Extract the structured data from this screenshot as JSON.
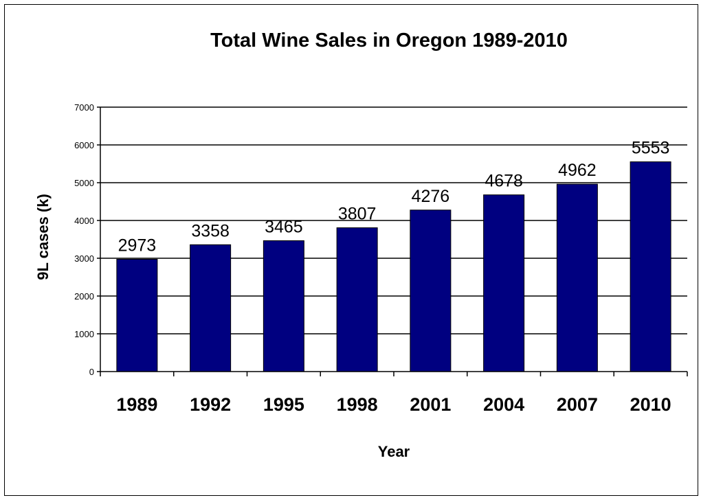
{
  "chart_data": {
    "type": "bar",
    "title": "Total Wine Sales in Oregon 1989-2010",
    "xlabel": "Year",
    "ylabel": "9L cases  (k)",
    "categories": [
      "1989",
      "1992",
      "1995",
      "1998",
      "2001",
      "2004",
      "2007",
      "2010"
    ],
    "values": [
      2973,
      3358,
      3465,
      3807,
      4276,
      4678,
      4962,
      5553
    ],
    "data_labels": [
      "2973",
      "3358",
      "3465",
      "3807",
      "4276",
      "4678",
      "4962",
      "5553"
    ],
    "y_ticks": [
      "0",
      "1000",
      "2000",
      "3000",
      "4000",
      "5000",
      "6000",
      "7000"
    ],
    "ylim": [
      0,
      7000
    ],
    "grid": true,
    "legend": "none",
    "bar_color": "#000080"
  }
}
